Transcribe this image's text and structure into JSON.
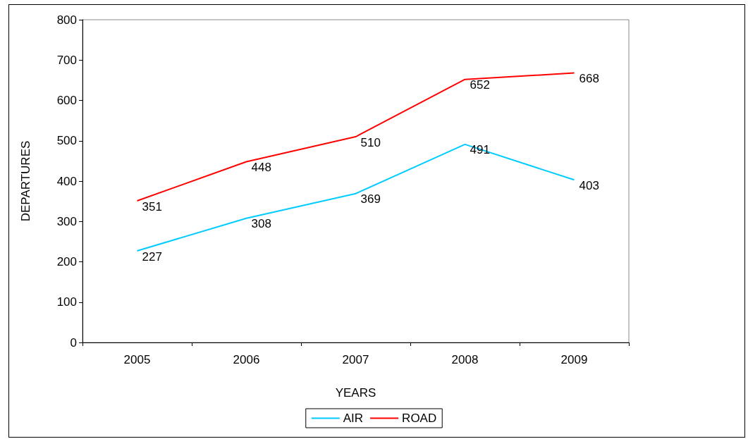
{
  "chart_data": {
    "type": "line",
    "xlabel": "YEARS",
    "ylabel": "DEPARTURES",
    "categories": [
      "2005",
      "2006",
      "2007",
      "2008",
      "2009"
    ],
    "series": [
      {
        "name": "AIR",
        "color": "#00ccff",
        "values": [
          227,
          308,
          369,
          491,
          403
        ]
      },
      {
        "name": "ROAD",
        "color": "#ff0000",
        "values": [
          351,
          448,
          510,
          652,
          668
        ]
      }
    ],
    "ylim": [
      0,
      800
    ],
    "yticks": [
      0,
      100,
      200,
      300,
      400,
      500,
      600,
      700,
      800
    ],
    "data_labels": true,
    "legend": "bottom",
    "marker": "none"
  }
}
